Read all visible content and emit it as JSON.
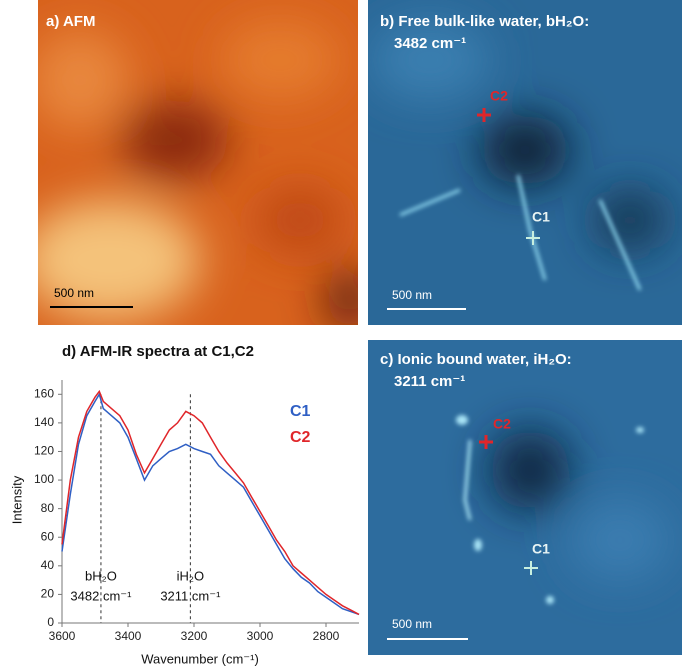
{
  "panels": {
    "a": {
      "label": "a) AFM",
      "scale_bar": "500 nm"
    },
    "b": {
      "label": "b) Free bulk-like water, bH₂O:",
      "label_line2": "3482 cm⁻¹",
      "scale_bar": "500 nm",
      "markers": [
        "C2",
        "C1"
      ]
    },
    "c": {
      "label": "c) Ionic bound water, iH₂O:",
      "label_line2": "3211 cm⁻¹",
      "scale_bar": "500 nm",
      "markers": [
        "C2",
        "C1"
      ]
    }
  },
  "chart_data": {
    "type": "line",
    "title": "d) AFM-IR spectra at C1,C2",
    "x_label": "Wavenumber (cm⁻¹)",
    "y_label": "Intensity",
    "x": [
      3600,
      3575,
      3550,
      3525,
      3500,
      3487,
      3475,
      3450,
      3425,
      3400,
      3375,
      3350,
      3325,
      3300,
      3275,
      3250,
      3225,
      3200,
      3175,
      3150,
      3125,
      3100,
      3075,
      3050,
      3025,
      3000,
      2975,
      2950,
      2925,
      2900,
      2875,
      2850,
      2825,
      2800,
      2775,
      2750,
      2725,
      2700
    ],
    "series": [
      {
        "name": "C1",
        "color": "#2f5fc4",
        "values": [
          50,
          90,
          125,
          145,
          155,
          160,
          150,
          145,
          140,
          130,
          115,
          100,
          110,
          115,
          120,
          122,
          125,
          122,
          120,
          118,
          110,
          105,
          100,
          95,
          85,
          75,
          65,
          55,
          45,
          38,
          32,
          28,
          22,
          18,
          14,
          10,
          8,
          6
        ]
      },
      {
        "name": "C2",
        "color": "#e0262a",
        "values": [
          55,
          100,
          130,
          148,
          158,
          162,
          155,
          150,
          145,
          135,
          118,
          105,
          115,
          125,
          135,
          140,
          148,
          145,
          140,
          130,
          120,
          112,
          105,
          98,
          88,
          78,
          68,
          58,
          50,
          40,
          35,
          30,
          25,
          20,
          16,
          12,
          9,
          6
        ]
      }
    ],
    "xlim": [
      3600,
      2700
    ],
    "xticks": [
      3600,
      3400,
      3200,
      3000,
      2800
    ],
    "ylim": [
      0,
      170
    ],
    "yticks": [
      0,
      20,
      40,
      60,
      80,
      100,
      120,
      140,
      160
    ],
    "annotations": [
      {
        "label": "bH₂O",
        "text": "3482 cm⁻¹",
        "x": 3482
      },
      {
        "label": "iH₂O",
        "text": "3211 cm⁻¹",
        "x": 3211
      }
    ]
  }
}
